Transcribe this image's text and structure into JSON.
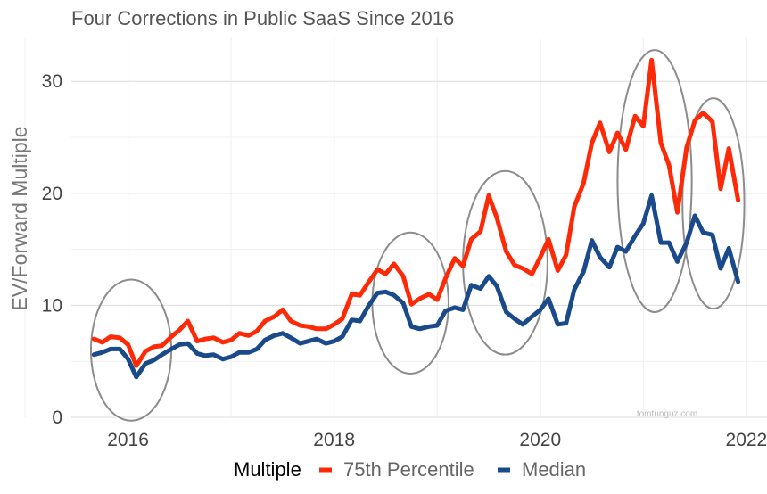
{
  "chart_data": {
    "type": "line",
    "title": "Four Corrections in Public SaaS Since 2016",
    "xlabel": "",
    "ylabel": "EV/Forward Multiple",
    "xlim": [
      2015.45,
      2022.2
    ],
    "ylim": [
      0,
      34
    ],
    "x_ticks": [
      2016,
      2018,
      2020,
      2022
    ],
    "x_tick_labels": [
      "2016",
      "2018",
      "2020",
      "2022"
    ],
    "y_ticks": [
      0,
      10,
      20,
      30
    ],
    "y_tick_labels": [
      "0",
      "10",
      "20",
      "30"
    ],
    "grid": true,
    "legend": {
      "title": "Multiple",
      "position": "bottom",
      "entries": [
        "75th Percentile",
        "Median"
      ]
    },
    "series": [
      {
        "name": "75th Percentile",
        "color": "#fc2a06",
        "points": [
          [
            2015.67,
            7.0
          ],
          [
            2015.75,
            6.7
          ],
          [
            2015.83,
            7.2
          ],
          [
            2015.92,
            7.1
          ],
          [
            2016.0,
            6.5
          ],
          [
            2016.08,
            4.6
          ],
          [
            2016.17,
            5.9
          ],
          [
            2016.25,
            6.3
          ],
          [
            2016.33,
            6.4
          ],
          [
            2016.42,
            7.2
          ],
          [
            2016.5,
            7.8
          ],
          [
            2016.58,
            8.6
          ],
          [
            2016.67,
            6.8
          ],
          [
            2016.75,
            7.0
          ],
          [
            2016.83,
            7.1
          ],
          [
            2016.92,
            6.7
          ],
          [
            2017.0,
            6.9
          ],
          [
            2017.08,
            7.5
          ],
          [
            2017.17,
            7.3
          ],
          [
            2017.25,
            7.7
          ],
          [
            2017.33,
            8.6
          ],
          [
            2017.42,
            9.0
          ],
          [
            2017.5,
            9.6
          ],
          [
            2017.58,
            8.6
          ],
          [
            2017.67,
            8.2
          ],
          [
            2017.75,
            8.1
          ],
          [
            2017.83,
            7.9
          ],
          [
            2017.92,
            7.9
          ],
          [
            2018.0,
            8.3
          ],
          [
            2018.08,
            8.8
          ],
          [
            2018.17,
            11.0
          ],
          [
            2018.25,
            10.9
          ],
          [
            2018.33,
            12.0
          ],
          [
            2018.42,
            13.2
          ],
          [
            2018.5,
            12.8
          ],
          [
            2018.58,
            13.7
          ],
          [
            2018.67,
            12.6
          ],
          [
            2018.75,
            10.1
          ],
          [
            2018.83,
            10.6
          ],
          [
            2018.92,
            11.0
          ],
          [
            2019.0,
            10.5
          ],
          [
            2019.08,
            12.4
          ],
          [
            2019.17,
            14.2
          ],
          [
            2019.25,
            13.5
          ],
          [
            2019.33,
            15.9
          ],
          [
            2019.42,
            16.6
          ],
          [
            2019.5,
            19.8
          ],
          [
            2019.58,
            17.8
          ],
          [
            2019.67,
            14.8
          ],
          [
            2019.75,
            13.6
          ],
          [
            2019.83,
            13.3
          ],
          [
            2019.92,
            12.8
          ],
          [
            2020.0,
            14.3
          ],
          [
            2020.08,
            15.9
          ],
          [
            2020.17,
            13.1
          ],
          [
            2020.25,
            14.5
          ],
          [
            2020.33,
            18.8
          ],
          [
            2020.42,
            20.9
          ],
          [
            2020.5,
            24.5
          ],
          [
            2020.58,
            26.3
          ],
          [
            2020.67,
            23.7
          ],
          [
            2020.75,
            25.4
          ],
          [
            2020.83,
            23.9
          ],
          [
            2020.92,
            26.9
          ],
          [
            2021.0,
            26.0
          ],
          [
            2021.08,
            31.9
          ],
          [
            2021.17,
            24.5
          ],
          [
            2021.25,
            22.5
          ],
          [
            2021.33,
            18.3
          ],
          [
            2021.42,
            24.1
          ],
          [
            2021.5,
            26.5
          ],
          [
            2021.58,
            27.2
          ],
          [
            2021.67,
            26.4
          ],
          [
            2021.75,
            20.4
          ],
          [
            2021.83,
            24.0
          ],
          [
            2021.92,
            19.4
          ]
        ]
      },
      {
        "name": "Median",
        "color": "#1a4a8a",
        "points": [
          [
            2015.67,
            5.6
          ],
          [
            2015.75,
            5.8
          ],
          [
            2015.83,
            6.1
          ],
          [
            2015.92,
            6.1
          ],
          [
            2016.0,
            5.2
          ],
          [
            2016.08,
            3.6
          ],
          [
            2016.17,
            4.8
          ],
          [
            2016.25,
            5.1
          ],
          [
            2016.33,
            5.6
          ],
          [
            2016.42,
            6.1
          ],
          [
            2016.5,
            6.5
          ],
          [
            2016.58,
            6.6
          ],
          [
            2016.67,
            5.7
          ],
          [
            2016.75,
            5.5
          ],
          [
            2016.83,
            5.6
          ],
          [
            2016.92,
            5.2
          ],
          [
            2017.0,
            5.4
          ],
          [
            2017.08,
            5.8
          ],
          [
            2017.17,
            5.8
          ],
          [
            2017.25,
            6.1
          ],
          [
            2017.33,
            6.9
          ],
          [
            2017.42,
            7.3
          ],
          [
            2017.5,
            7.5
          ],
          [
            2017.58,
            7.1
          ],
          [
            2017.67,
            6.6
          ],
          [
            2017.75,
            6.8
          ],
          [
            2017.83,
            7.0
          ],
          [
            2017.92,
            6.6
          ],
          [
            2018.0,
            6.8
          ],
          [
            2018.08,
            7.2
          ],
          [
            2018.17,
            8.7
          ],
          [
            2018.25,
            8.6
          ],
          [
            2018.33,
            9.9
          ],
          [
            2018.42,
            11.1
          ],
          [
            2018.5,
            11.2
          ],
          [
            2018.58,
            10.9
          ],
          [
            2018.67,
            10.2
          ],
          [
            2018.75,
            8.1
          ],
          [
            2018.83,
            7.9
          ],
          [
            2018.92,
            8.1
          ],
          [
            2019.0,
            8.2
          ],
          [
            2019.08,
            9.5
          ],
          [
            2019.17,
            9.8
          ],
          [
            2019.25,
            9.6
          ],
          [
            2019.33,
            11.8
          ],
          [
            2019.42,
            11.5
          ],
          [
            2019.5,
            12.6
          ],
          [
            2019.58,
            11.7
          ],
          [
            2019.67,
            9.4
          ],
          [
            2019.75,
            8.8
          ],
          [
            2019.83,
            8.3
          ],
          [
            2019.92,
            9.0
          ],
          [
            2020.0,
            9.6
          ],
          [
            2020.08,
            10.6
          ],
          [
            2020.17,
            8.3
          ],
          [
            2020.25,
            8.4
          ],
          [
            2020.33,
            11.4
          ],
          [
            2020.42,
            13.0
          ],
          [
            2020.5,
            15.8
          ],
          [
            2020.58,
            14.3
          ],
          [
            2020.67,
            13.4
          ],
          [
            2020.75,
            15.2
          ],
          [
            2020.83,
            14.8
          ],
          [
            2020.92,
            16.2
          ],
          [
            2021.0,
            17.3
          ],
          [
            2021.08,
            19.8
          ],
          [
            2021.17,
            15.6
          ],
          [
            2021.25,
            15.6
          ],
          [
            2021.33,
            13.9
          ],
          [
            2021.42,
            15.6
          ],
          [
            2021.5,
            18.0
          ],
          [
            2021.58,
            16.5
          ],
          [
            2021.67,
            16.3
          ],
          [
            2021.75,
            13.3
          ],
          [
            2021.83,
            15.1
          ],
          [
            2021.92,
            12.1
          ]
        ]
      }
    ],
    "annotations": [
      {
        "type": "ellipse",
        "cx": 2016.03,
        "cy": 6.0,
        "rx": 0.39,
        "ry": 6.3,
        "stroke": "#8c8c8c"
      },
      {
        "type": "ellipse",
        "cx": 2018.74,
        "cy": 10.2,
        "rx": 0.37,
        "ry": 6.3,
        "stroke": "#8c8c8c"
      },
      {
        "type": "ellipse",
        "cx": 2019.66,
        "cy": 13.8,
        "rx": 0.41,
        "ry": 8.2,
        "stroke": "#8c8c8c"
      },
      {
        "type": "ellipse",
        "cx": 2021.11,
        "cy": 21.1,
        "rx": 0.36,
        "ry": 11.7,
        "stroke": "#8c8c8c"
      },
      {
        "type": "ellipse",
        "cx": 2021.68,
        "cy": 19.1,
        "rx": 0.3,
        "ry": 9.4,
        "stroke": "#8c8c8c"
      }
    ],
    "watermark": "tomtunguz.com"
  }
}
